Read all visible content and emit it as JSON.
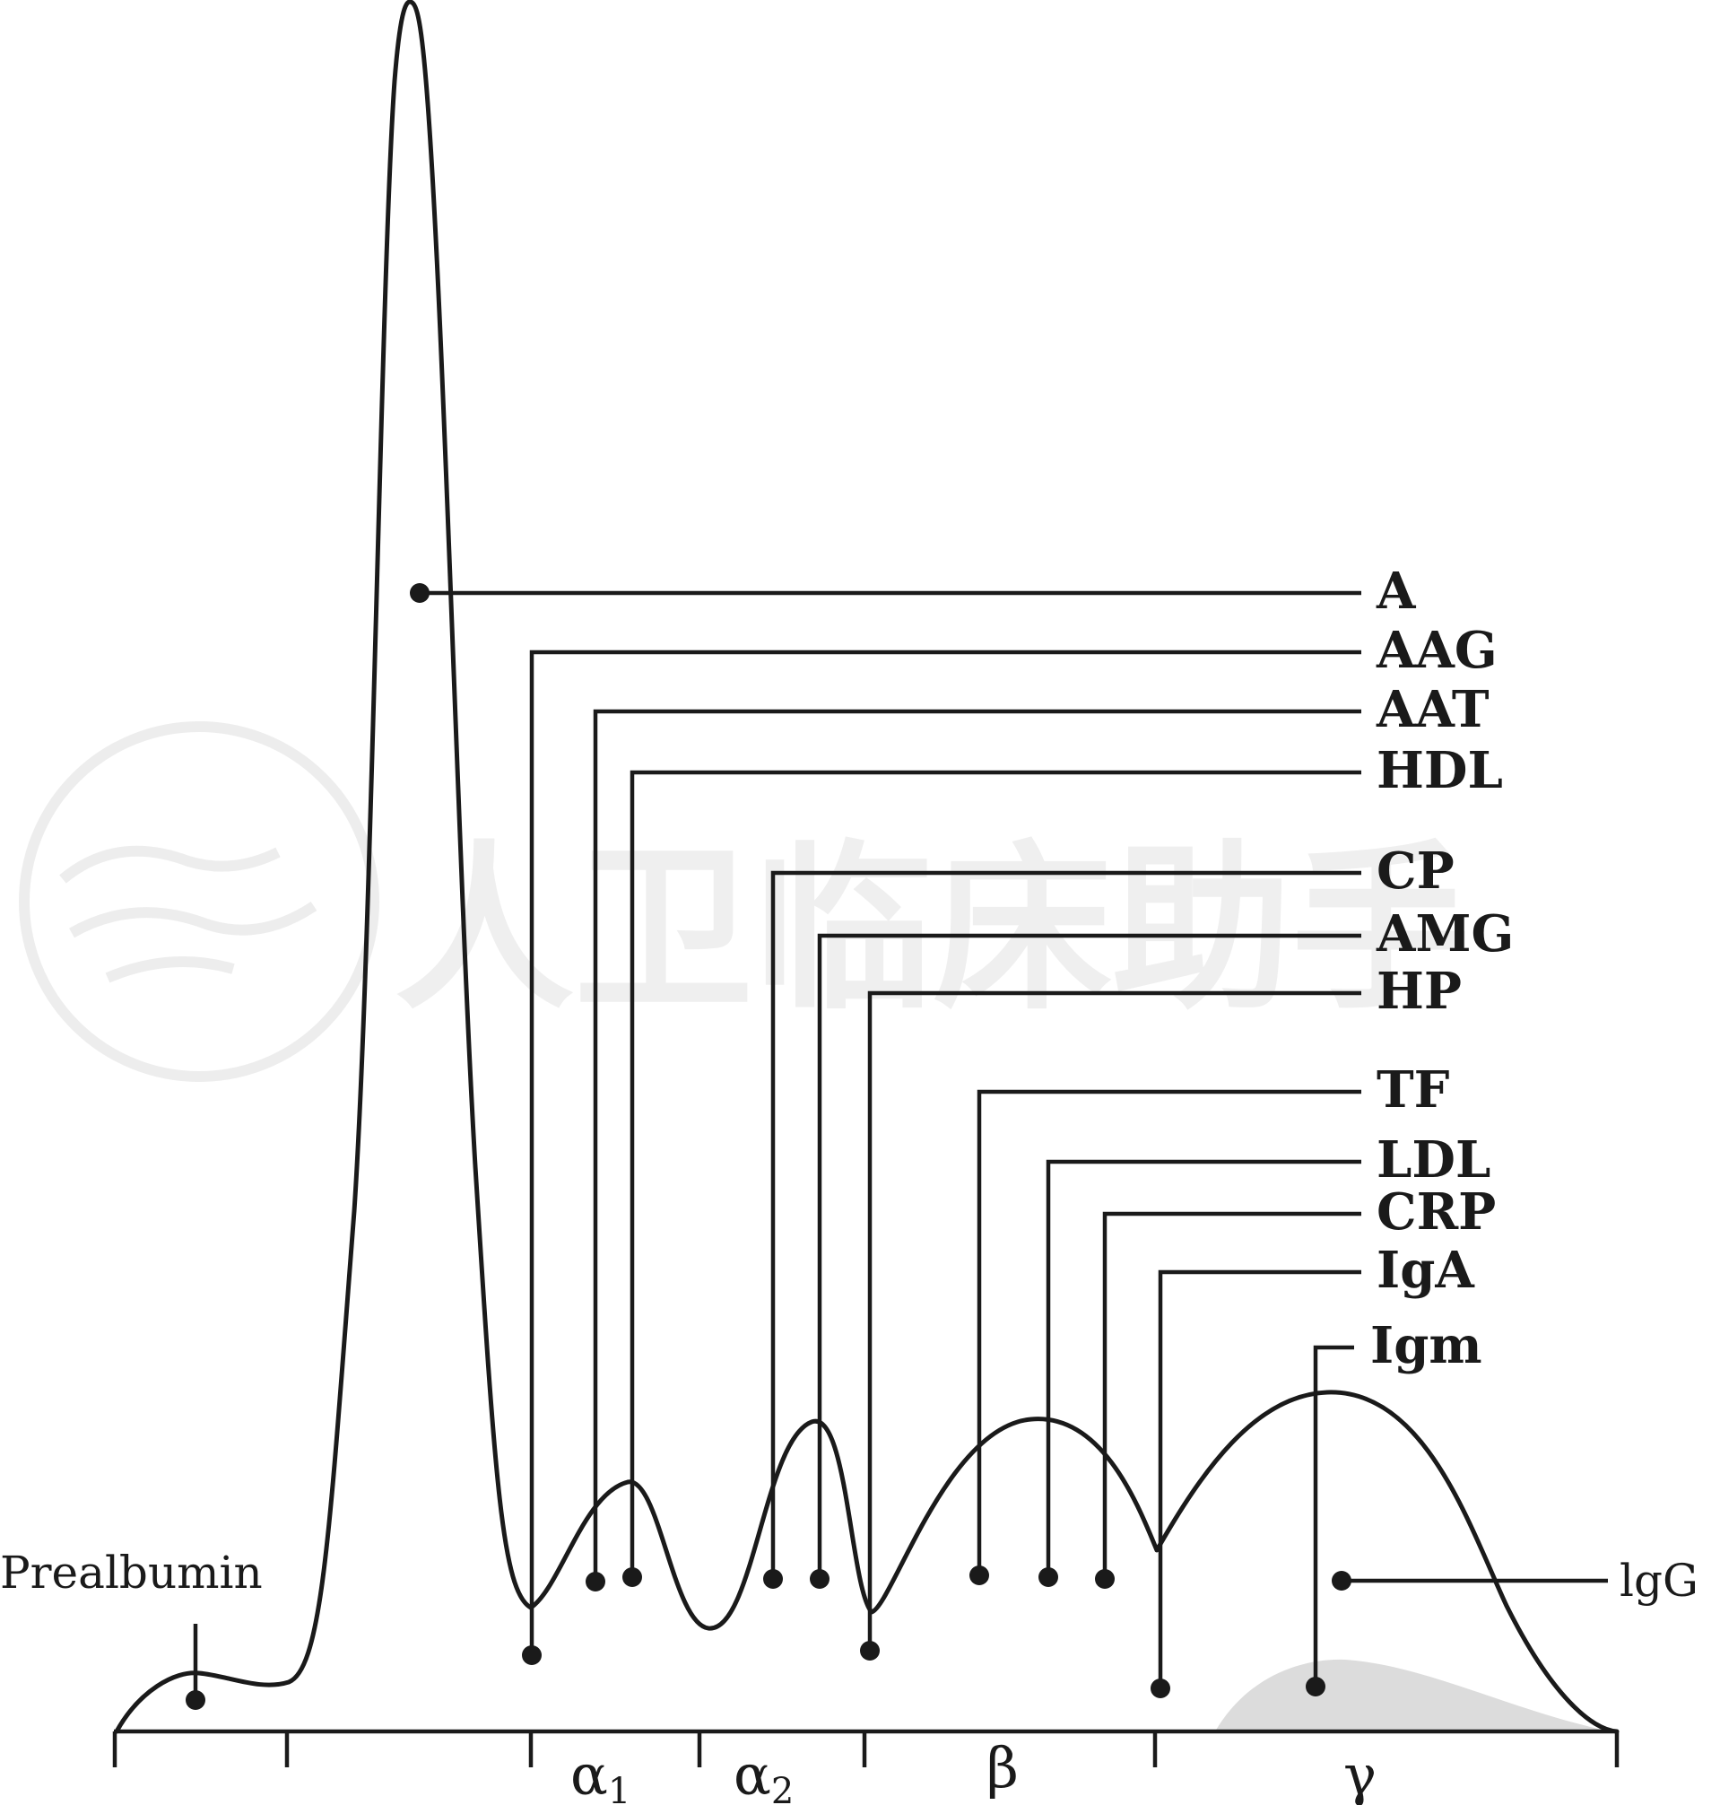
{
  "watermark": {
    "text": "人卫临床助手"
  },
  "labels": {
    "A": "A",
    "AAG": "AAG",
    "AAT": "AAT",
    "HDL": "HDL",
    "CP": "CP",
    "AMG": "AMG",
    "HP": "HP",
    "TF": "TF",
    "LDL": "LDL",
    "CRP": "CRP",
    "IgA": "IgA",
    "Igm": "Igm",
    "IgG": "lgG",
    "prealbumin": "Prealbumin"
  },
  "zones": {
    "alpha1": {
      "symbol": "α",
      "sub": "1"
    },
    "alpha2": {
      "symbol": "α",
      "sub": "2"
    },
    "beta": {
      "symbol": "β"
    },
    "gamma": {
      "symbol": "γ"
    }
  },
  "colors": {
    "ink": "#1a1a1a",
    "shade": "#dcdcdc",
    "watermark": "#ededed"
  }
}
